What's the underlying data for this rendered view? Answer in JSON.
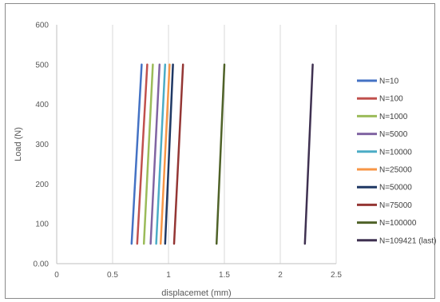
{
  "chart_data": {
    "type": "line",
    "title": "",
    "xlabel": "displacemet (mm)",
    "ylabel": "Load (N)",
    "xlim": [
      0,
      2.5
    ],
    "ylim": [
      0,
      600
    ],
    "x_ticks": [
      "0",
      "0.5",
      "1",
      "1.5",
      "2",
      "2.5"
    ],
    "y_ticks": [
      "0.00",
      "100",
      "200",
      "300",
      "400",
      "500",
      "600"
    ],
    "grid": "vertical",
    "legend_position": "right",
    "series": [
      {
        "name": "N=10",
        "color": "#4472C4",
        "x": [
          0.67,
          0.76
        ],
        "y": [
          50,
          500
        ]
      },
      {
        "name": "N=100",
        "color": "#C0504D",
        "x": [
          0.72,
          0.81
        ],
        "y": [
          50,
          500
        ]
      },
      {
        "name": "N=1000",
        "color": "#9BBB59",
        "x": [
          0.78,
          0.86
        ],
        "y": [
          50,
          500
        ]
      },
      {
        "name": "N=5000",
        "color": "#8064A2",
        "x": [
          0.84,
          0.92
        ],
        "y": [
          50,
          500
        ]
      },
      {
        "name": "N=10000",
        "color": "#4BACC6",
        "x": [
          0.89,
          0.97
        ],
        "y": [
          50,
          500
        ]
      },
      {
        "name": "N=25000",
        "color": "#F79646",
        "x": [
          0.93,
          1.01
        ],
        "y": [
          50,
          500
        ]
      },
      {
        "name": "N=50000",
        "color": "#1F3864",
        "x": [
          0.97,
          1.04
        ],
        "y": [
          50,
          500
        ]
      },
      {
        "name": "N=75000",
        "color": "#943634",
        "x": [
          1.05,
          1.13
        ],
        "y": [
          50,
          500
        ]
      },
      {
        "name": "N=100000",
        "color": "#4F6228",
        "x": [
          1.43,
          1.5
        ],
        "y": [
          50,
          500
        ]
      },
      {
        "name": "N=109421 (last)",
        "color": "#3F3151",
        "x": [
          2.22,
          2.29
        ],
        "y": [
          50,
          500
        ]
      }
    ]
  }
}
